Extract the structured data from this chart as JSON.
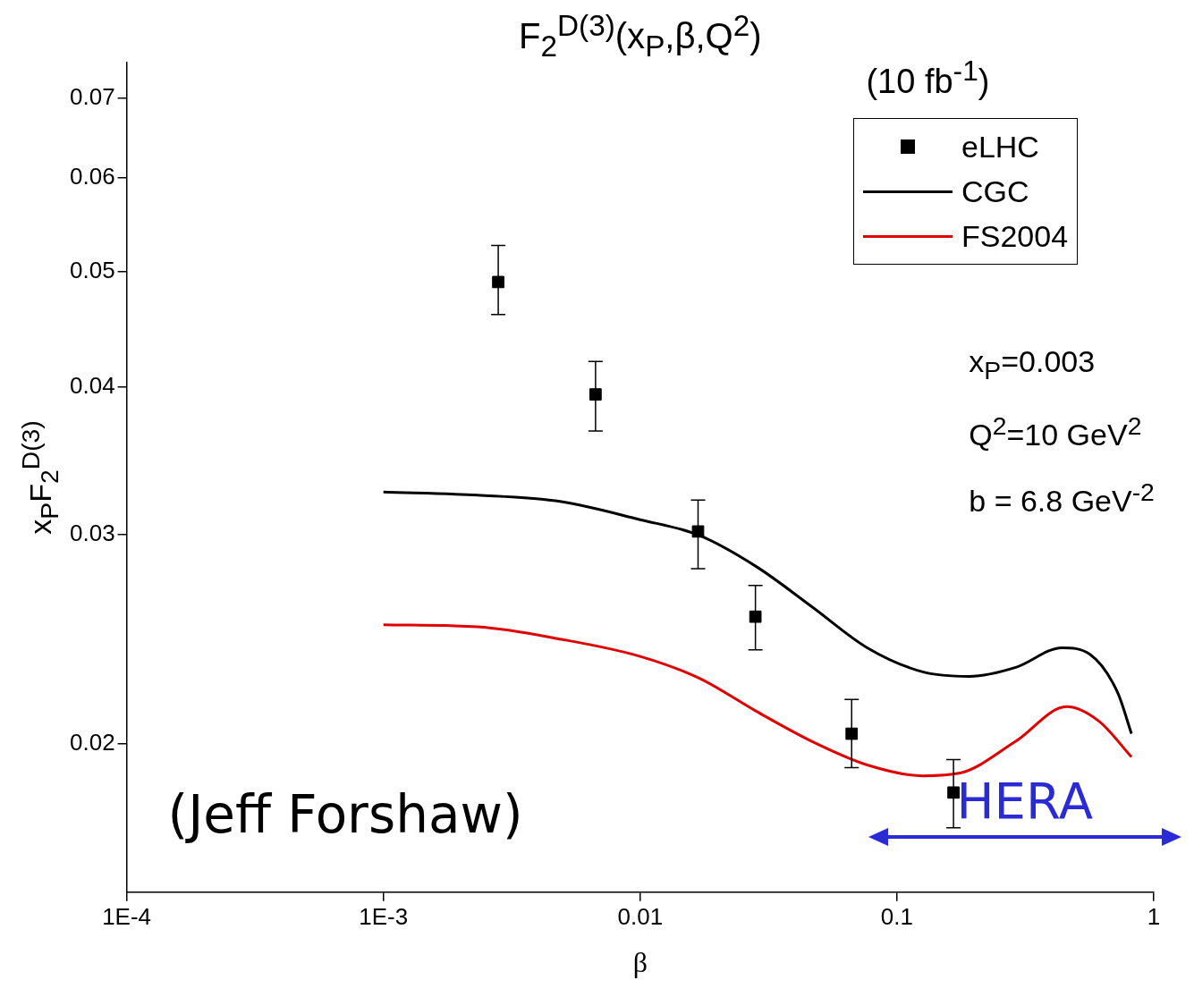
{
  "chart_data": {
    "type": "scatter",
    "title": "F$_{2}$$^{D(3)}$(x$_{P}$,β,Q$^{2}$)",
    "xlabel": "β",
    "ylabel": "x$_{P}$F$_{2}$$^{D(3)}$",
    "log": "xy",
    "xlim": [
      0.0001,
      1
    ],
    "xticks": [
      {
        "value": 0.0001,
        "label": "1E-4"
      },
      {
        "value": 0.001,
        "label": "1E-3"
      },
      0.01,
      0.1,
      1
    ],
    "ylim": [
      0.015,
      0.075
    ],
    "yticks": [
      0.02,
      0.03,
      0.04,
      0.05,
      0.06,
      0.07
    ],
    "grid": false,
    "legend": "top right",
    "series": [
      {
        "name": "eLHC",
        "marker": "square",
        "color": "#000000",
        "x": [
          0.0028,
          0.0067,
          0.0168,
          0.0281,
          0.0666,
          0.166
        ],
        "values": [
          0.049,
          0.0394,
          0.0302,
          0.0256,
          0.0204,
          0.0182
        ],
        "errors": [
          [
            0.046,
            0.0526
          ],
          [
            0.0367,
            0.042
          ],
          [
            0.0281,
            0.0321
          ],
          [
            0.024,
            0.0272
          ],
          [
            0.0191,
            0.0218
          ],
          [
            0.017,
            0.0194
          ]
        ]
      },
      {
        "name": "CGC",
        "type": "line",
        "marker": "none",
        "color": "#000000",
        "x": [
          0.001,
          0.00233,
          0.00493,
          0.01,
          0.0168,
          0.0284,
          0.0466,
          0.0766,
          0.126,
          0.191,
          0.29,
          0.439,
          0.564,
          0.723,
          0.819
        ],
        "values": [
          0.0326,
          0.0324,
          0.032,
          0.0309,
          0.03,
          0.0282,
          0.0261,
          0.0241,
          0.023,
          0.0228,
          0.0232,
          0.0241,
          0.0238,
          0.0221,
          0.0204
        ]
      },
      {
        "name": "FS2004",
        "type": "line",
        "marker": "none",
        "color": "#e00000",
        "x": [
          0.001,
          0.00233,
          0.00493,
          0.01,
          0.0171,
          0.0284,
          0.0466,
          0.0766,
          0.126,
          0.176,
          0.29,
          0.458,
          0.612,
          0.819
        ],
        "values": [
          0.0252,
          0.0251,
          0.0245,
          0.0237,
          0.0227,
          0.0213,
          0.0201,
          0.0192,
          0.0188,
          0.0189,
          0.0201,
          0.0215,
          0.0209,
          0.0195
        ]
      }
    ],
    "annotations": [
      "(10 fb$^{-1}$)",
      "x$_{P}$=0.003",
      "Q$^{2}$=10 GeV$^{2}$",
      "b = 6.8 GeV$^{-2}$",
      "(Jeff Forshaw)",
      "HERA"
    ]
  }
}
